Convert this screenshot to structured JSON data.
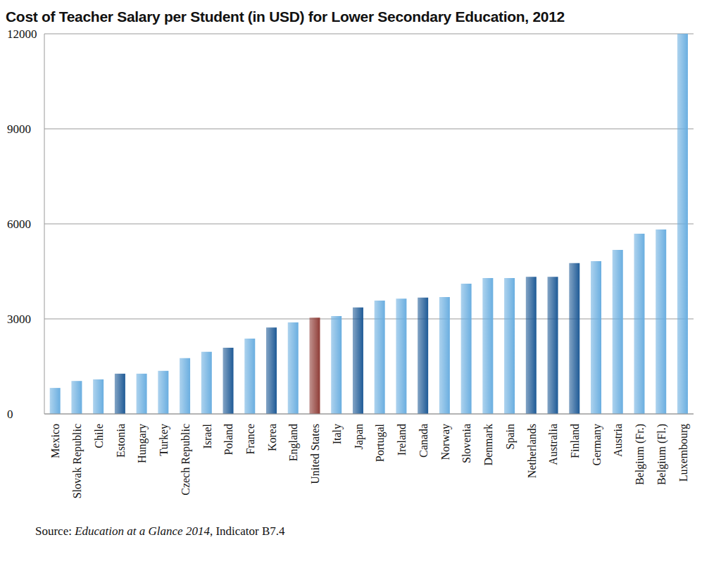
{
  "chart_data": {
    "type": "bar",
    "title": "Cost of Teacher Salary per Student (in USD) for Lower Secondary Education, 2012",
    "source": "Source: Education at a Glance 2014, Indicator B7.4",
    "source_italic": "Education at a Glance 2014",
    "categories": [
      "Mexico",
      "Slovak Republic",
      "Chile",
      "Estonia",
      "Hungary",
      "Turkey",
      "Czech Republic",
      "Israel",
      "Poland",
      "France",
      "Korea",
      "England",
      "United States",
      "Italy",
      "Japan",
      "Portugal",
      "Ireland",
      "Canada",
      "Norway",
      "Slovenia",
      "Denmark",
      "Spain",
      "Netherlands",
      "Australia",
      "Finland",
      "Germany",
      "Austria",
      "Belgium (Fr.)",
      "Belgium (Fl.)",
      "Luxembourg"
    ],
    "values": [
      820,
      1040,
      1090,
      1270,
      1270,
      1360,
      1760,
      1960,
      2090,
      2380,
      2730,
      2890,
      3040,
      3090,
      3360,
      3580,
      3640,
      3670,
      3690,
      4110,
      4290,
      4290,
      4330,
      4330,
      4760,
      4820,
      5180,
      5690,
      5820,
      12000
    ],
    "colors": [
      "#6aaee0",
      "#6aaee0",
      "#6aaee0",
      "#1e5a96",
      "#6aaee0",
      "#6aaee0",
      "#6aaee0",
      "#6aaee0",
      "#1e5a96",
      "#6aaee0",
      "#1e5a96",
      "#6aaee0",
      "#8e3b35",
      "#6aaee0",
      "#1e5a96",
      "#6aaee0",
      "#6aaee0",
      "#1e5a96",
      "#6aaee0",
      "#6aaee0",
      "#6aaee0",
      "#6aaee0",
      "#1e5a96",
      "#1e5a96",
      "#1e5a96",
      "#6aaee0",
      "#6aaee0",
      "#6aaee0",
      "#6aaee0",
      "#6aaee0"
    ],
    "ylim": [
      0,
      12000
    ],
    "yticks": [
      0,
      3000,
      6000,
      9000,
      12000
    ],
    "grid": true
  }
}
